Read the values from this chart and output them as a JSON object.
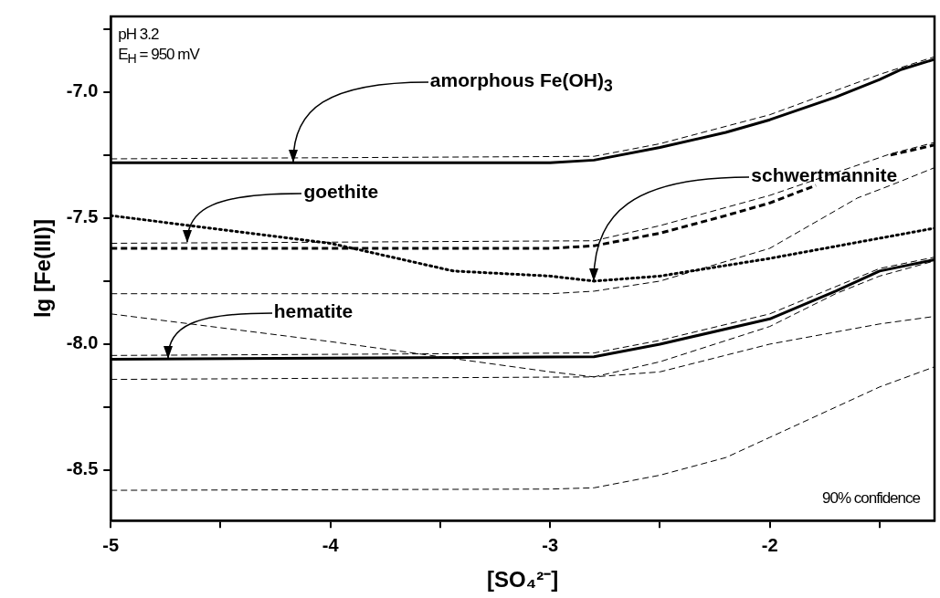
{
  "chart_data": {
    "type": "line",
    "xlabel": "[SO₄²⁻]",
    "ylabel": "lg [Fe(III)]",
    "xlim": [
      -5,
      -1.25
    ],
    "ylim": [
      -8.7,
      -6.7
    ],
    "xticks": [
      -5,
      {
        "value": -4.5,
        "label": null
      },
      -4,
      {
        "value": -3.5,
        "label": null
      },
      -3,
      {
        "value": -2.5,
        "label": null
      },
      -2,
      {
        "value": -1.5,
        "label": null
      }
    ],
    "yticks": [
      {
        "value": -8.5,
        "label": "-8.5"
      },
      {
        "value": -8.25,
        "label": null
      },
      {
        "value": -8.0,
        "label": "-8.0"
      },
      {
        "value": -7.75,
        "label": null
      },
      {
        "value": -7.5,
        "label": "-7.5"
      },
      {
        "value": -7.25,
        "label": null
      },
      {
        "value": -7.0,
        "label": "-7.0"
      },
      {
        "value": -6.75,
        "label": null
      }
    ],
    "grid": false,
    "legend": false,
    "marker": "none",
    "series": [
      {
        "color": "#000000",
        "line_style": "solid",
        "x": [
          -5,
          -3,
          -2.8,
          -2.5,
          -2.2,
          -2,
          -1.7,
          -1.5,
          -1.4,
          -1.25
        ],
        "values": [
          -7.28,
          -7.28,
          -7.27,
          -7.22,
          -7.16,
          -7.11,
          -7.02,
          -6.95,
          -6.91,
          -6.87
        ]
      },
      {
        "color": "#000000",
        "line_style": "dashed",
        "x": [
          -5,
          -2.8,
          -2.5,
          -2,
          -1.5,
          -1.25
        ],
        "values": [
          -7.265,
          -7.255,
          -7.205,
          -7.09,
          -6.93,
          -6.86
        ]
      },
      {
        "color": "#000000",
        "line_style": "dashed",
        "x": [
          -5,
          -3,
          -2.8,
          -2.5,
          -2.2,
          -2,
          -1.79,
          -1.6,
          -1.45,
          -1.25
        ],
        "values": [
          -7.62,
          -7.62,
          -7.61,
          -7.56,
          -7.49,
          -7.44,
          -7.37,
          null,
          -7.25,
          -7.21
        ]
      },
      {
        "color": "#000000",
        "line_style": "dashed",
        "x": [
          -5,
          -2.8,
          -2.5,
          -2,
          -1.8,
          -1.45,
          -1.25
        ],
        "values": [
          -7.6,
          -7.59,
          -7.53,
          -7.41,
          -7.35,
          -7.245,
          -7.2
        ]
      },
      {
        "color": "#000000",
        "line_style": "dashed",
        "x": [
          -5,
          -3,
          -2.8,
          -2.5,
          -2,
          -1.6,
          -1.45,
          -1.25
        ],
        "values": [
          -7.8,
          -7.8,
          -7.79,
          -7.75,
          -7.62,
          -7.42,
          -7.37,
          -7.3
        ]
      },
      {
        "color": "#000000",
        "line_style": "dotted",
        "x": [
          -5,
          -4,
          -3.44,
          -3,
          -2.8,
          -2.5,
          -2,
          -1.5,
          -1.25
        ],
        "values": [
          -7.49,
          -7.6,
          -7.71,
          -7.73,
          -7.75,
          -7.73,
          -7.66,
          -7.58,
          -7.54
        ]
      },
      {
        "color": "#000000",
        "line_style": "dashed",
        "x": [
          -5,
          -4,
          -3.5,
          -3,
          -2.8,
          -2.5,
          -2,
          -1.5,
          -1.25
        ],
        "values": [
          -7.88,
          -7.99,
          -8.05,
          -8.11,
          -8.13,
          -8.11,
          -8.0,
          -7.92,
          -7.89
        ]
      },
      {
        "color": "#000000",
        "line_style": "solid",
        "x": [
          -5,
          -2.8,
          -2.5,
          -2,
          -1.7,
          -1.5,
          -1.25
        ],
        "values": [
          -8.06,
          -8.05,
          -8.0,
          -7.9,
          -7.79,
          -7.71,
          -7.665
        ]
      },
      {
        "color": "#000000",
        "line_style": "dashed",
        "x": [
          -5,
          -2.8,
          -2.5,
          -2,
          -1.5,
          -1.25
        ],
        "values": [
          -8.045,
          -8.035,
          -7.985,
          -7.88,
          -7.7,
          -7.655
        ]
      },
      {
        "color": "#000000",
        "line_style": "dashed",
        "x": [
          -5,
          -2.8,
          -2.5,
          -2,
          -1.7,
          -1.5,
          -1.25
        ],
        "values": [
          -8.14,
          -8.13,
          -8.07,
          -7.93,
          -7.8,
          -7.73,
          -7.67
        ]
      },
      {
        "color": "#000000",
        "line_style": "dashed",
        "x": [
          -5,
          -3,
          -2.8,
          -2.5,
          -2.2,
          -2,
          -1.7,
          -1.5,
          -1.25
        ],
        "values": [
          -8.58,
          -8.575,
          -8.57,
          -8.52,
          -8.45,
          -8.37,
          -8.25,
          -8.17,
          -8.09
        ]
      }
    ],
    "annotations": [
      "pH 3.2",
      "E$_{H}$ = 950 mV",
      "90% confidence",
      {
        "text": "amorphous Fe(OH)$_{3}$",
        "x": -4.17,
        "y": -7.28
      },
      {
        "text": "goethite",
        "x": -4.65,
        "y": -7.6
      },
      {
        "text": "schwertmannite",
        "x": -2.8,
        "y": -7.75
      },
      {
        "text": "hematite",
        "x": -4.74,
        "y": -8.06
      }
    ]
  }
}
